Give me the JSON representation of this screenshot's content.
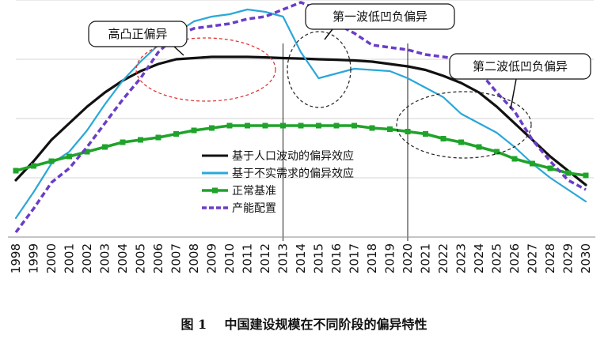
{
  "chart_data": {
    "type": "line",
    "x": [
      "1998",
      "1999",
      "2000",
      "2001",
      "2002",
      "2003",
      "2004",
      "2005",
      "2006",
      "2007",
      "2008",
      "2009",
      "2010",
      "2011",
      "2012",
      "2013",
      "2014",
      "2015",
      "2016",
      "2017",
      "2018",
      "2019",
      "2020",
      "2021",
      "2022",
      "2023",
      "2024",
      "2025",
      "2026",
      "2027",
      "2028",
      "2029",
      "2030"
    ],
    "ylim": [
      0,
      100
    ],
    "grid": true,
    "legend_position": "center-left",
    "series": [
      {
        "name": "基于人口波动的偏异效应",
        "color": "#111111",
        "style": "solid",
        "values": [
          24,
          32,
          41,
          48,
          55,
          61,
          66,
          70,
          73,
          75,
          75.5,
          76,
          76,
          76,
          75.8,
          75.5,
          75.3,
          75,
          74.8,
          74.5,
          74,
          73,
          72,
          70.5,
          68,
          65,
          61,
          55,
          48,
          41,
          34,
          28,
          22
        ]
      },
      {
        "name": "基于不实需求的偏异效应",
        "color": "#2aa7d8",
        "style": "solid",
        "values": [
          8,
          19,
          31,
          36,
          45,
          56,
          66,
          74,
          81,
          86,
          91,
          93,
          94,
          96,
          95,
          93,
          78,
          67,
          69,
          71,
          70.5,
          70,
          67,
          63,
          59,
          52,
          48,
          44,
          38,
          31,
          25,
          20,
          15
        ]
      },
      {
        "name": "正常基准",
        "color": "#1fa32a",
        "style": "solid-markers",
        "values": [
          28,
          30,
          32,
          34,
          36,
          38,
          40,
          41,
          42,
          43.5,
          45,
          46,
          47,
          47,
          47,
          47,
          47,
          47,
          47,
          47,
          46,
          45.5,
          44.5,
          43.5,
          41.5,
          40,
          38,
          36,
          33,
          31,
          29,
          27,
          26
        ]
      },
      {
        "name": "产能配置",
        "color": "#6a3dc8",
        "style": "dashed",
        "values": [
          2,
          12,
          23,
          29,
          38,
          48,
          58,
          67,
          78,
          85,
          88,
          89,
          90,
          92,
          93,
          96,
          99,
          96,
          90,
          86,
          81,
          80,
          79,
          77,
          76,
          75,
          70,
          61,
          53,
          41,
          32,
          24,
          20
        ]
      }
    ],
    "annotations": [
      {
        "label": "高凸正偏异",
        "center_year": "2008.5"
      },
      {
        "label": "第一波低凹负偏异",
        "center_year": "2014.8"
      },
      {
        "label": "第二波低凹负偏异",
        "center_year": "2023.5"
      }
    ],
    "vlines": [
      "2013",
      "2020"
    ]
  },
  "caption": {
    "fig": "图 1",
    "title": "中国建设规模在不同阶段的偏异特性"
  }
}
